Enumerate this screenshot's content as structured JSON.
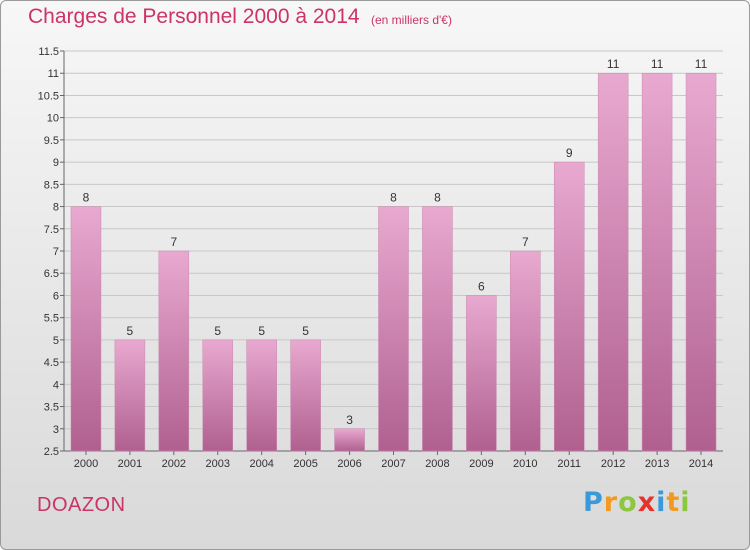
{
  "header": {
    "title": "Charges de Personnel 2000 à 2014",
    "subtitle": "(en milliers d'€)"
  },
  "footer": {
    "city": "DOAZON",
    "logo_letters": [
      "P",
      "r",
      "o",
      "x",
      "i",
      "t",
      "i"
    ],
    "logo_colors": [
      "#3a9ad9",
      "#f29a1f",
      "#8dc63f",
      "#e5322d",
      "#3a9ad9",
      "#f29a1f",
      "#8dc63f"
    ]
  },
  "colors": {
    "bar_top": "#e8a9d0",
    "bar_bottom": "#b0608f",
    "title": "#cc3366",
    "grid": "#c8c8c8"
  },
  "chart_data": {
    "type": "bar",
    "title": "Charges de Personnel 2000 à 2014",
    "subtitle": "(en milliers d'€)",
    "xlabel": "",
    "ylabel": "",
    "categories": [
      "2000",
      "2001",
      "2002",
      "2003",
      "2004",
      "2005",
      "2006",
      "2007",
      "2008",
      "2009",
      "2010",
      "2011",
      "2012",
      "2013",
      "2014"
    ],
    "values": [
      8,
      5,
      7,
      5,
      5,
      5,
      3,
      8,
      8,
      6,
      7,
      9,
      11,
      11,
      11
    ],
    "ylim": [
      2.5,
      11.5
    ],
    "yticks": [
      "2.5",
      "3",
      "3.5",
      "4",
      "4.5",
      "5",
      "5.5",
      "6",
      "6.5",
      "7",
      "7.5",
      "8",
      "8.5",
      "9",
      "9.5",
      "10",
      "10.5",
      "11",
      "11.5"
    ],
    "grid": true,
    "legend": "none"
  }
}
